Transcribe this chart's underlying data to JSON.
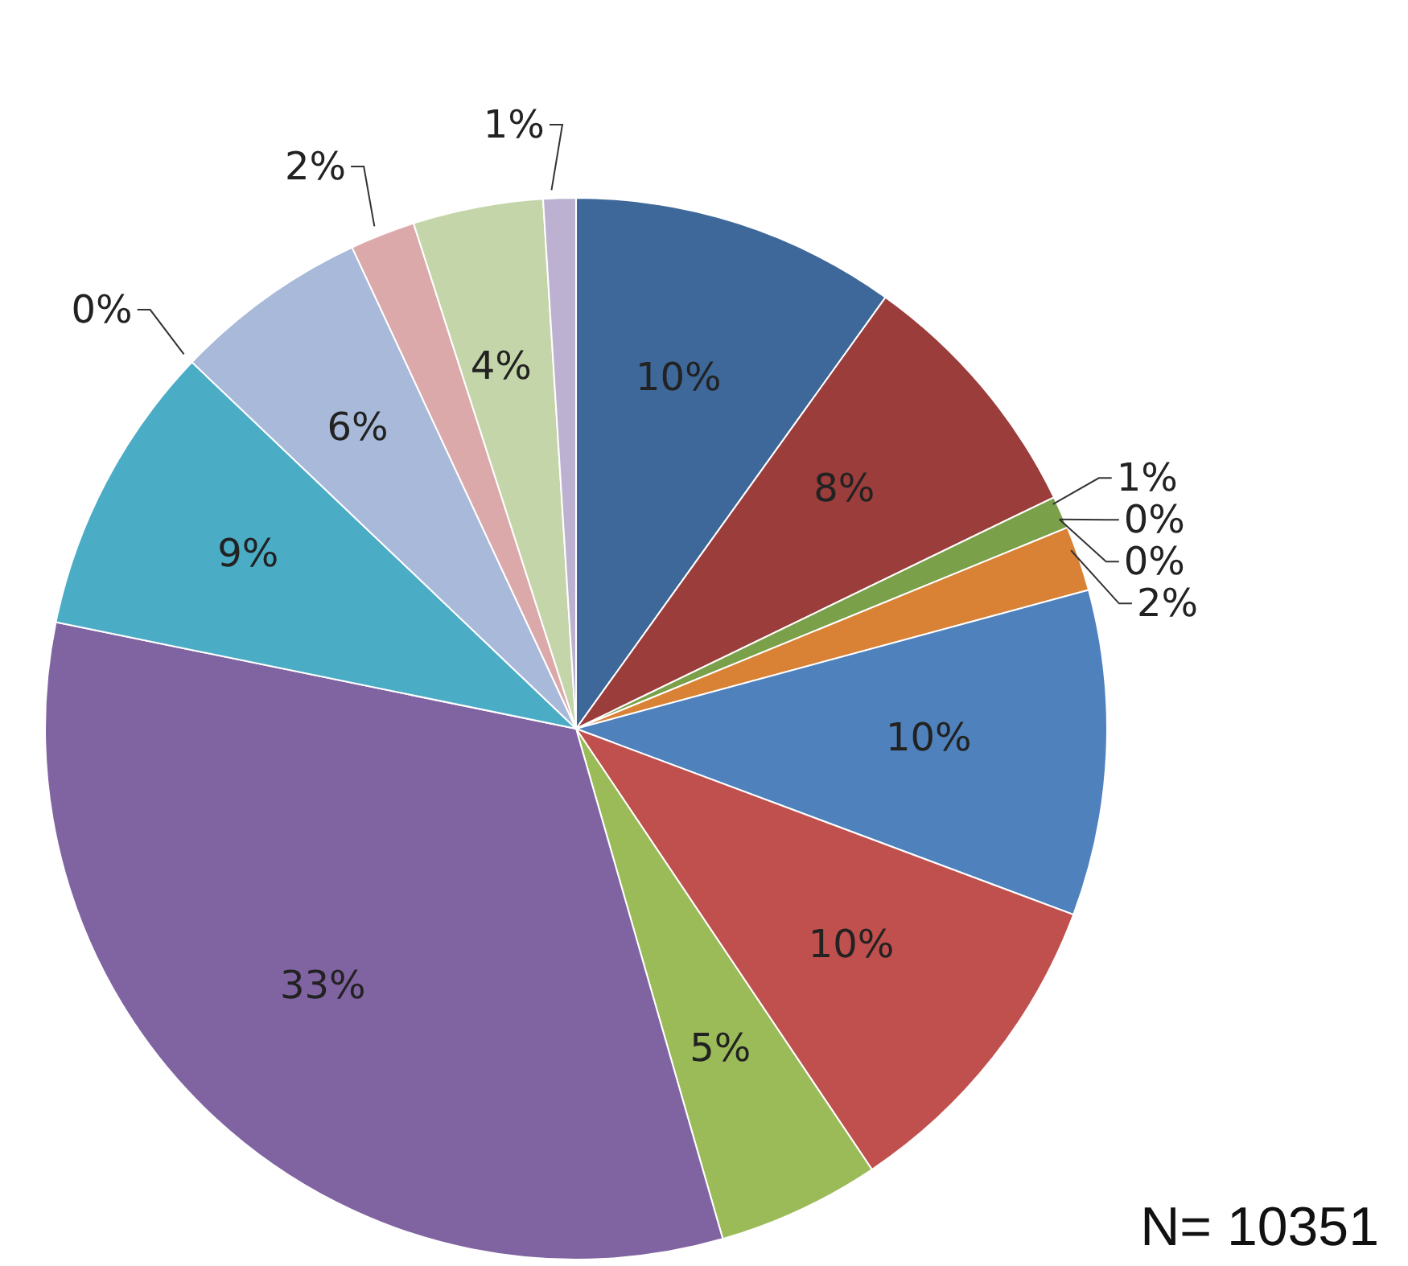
{
  "chart_data": {
    "type": "pie",
    "categories": [
      null,
      null,
      null,
      null,
      null,
      null,
      null,
      null,
      null,
      null,
      null,
      null,
      null,
      null,
      null,
      null
    ],
    "values": [
      10,
      8,
      1,
      0,
      0,
      2,
      10,
      10,
      5,
      33,
      9,
      0,
      6,
      2,
      4,
      1
    ],
    "value_labels": [
      "10%",
      "8%",
      "1%",
      "0%",
      "0%",
      "2%",
      "10%",
      "10%",
      "5%",
      "33%",
      "9%",
      "0%",
      "6%",
      "2%",
      "4%",
      "1%"
    ],
    "colors": [
      "#3d6899",
      "#9b3d3b",
      "#7aa04a",
      "#6f4b94",
      "#3d9fb9",
      "#d98236",
      "#4f81bd",
      "#c0504d",
      "#9bbb59",
      "#8064a2",
      "#4bacc6",
      "#f79646",
      "#a9b9da",
      "#dba9aa",
      "#c4d6a9",
      "#bcb1d1"
    ],
    "annotations": [
      "N= 10351"
    ]
  }
}
